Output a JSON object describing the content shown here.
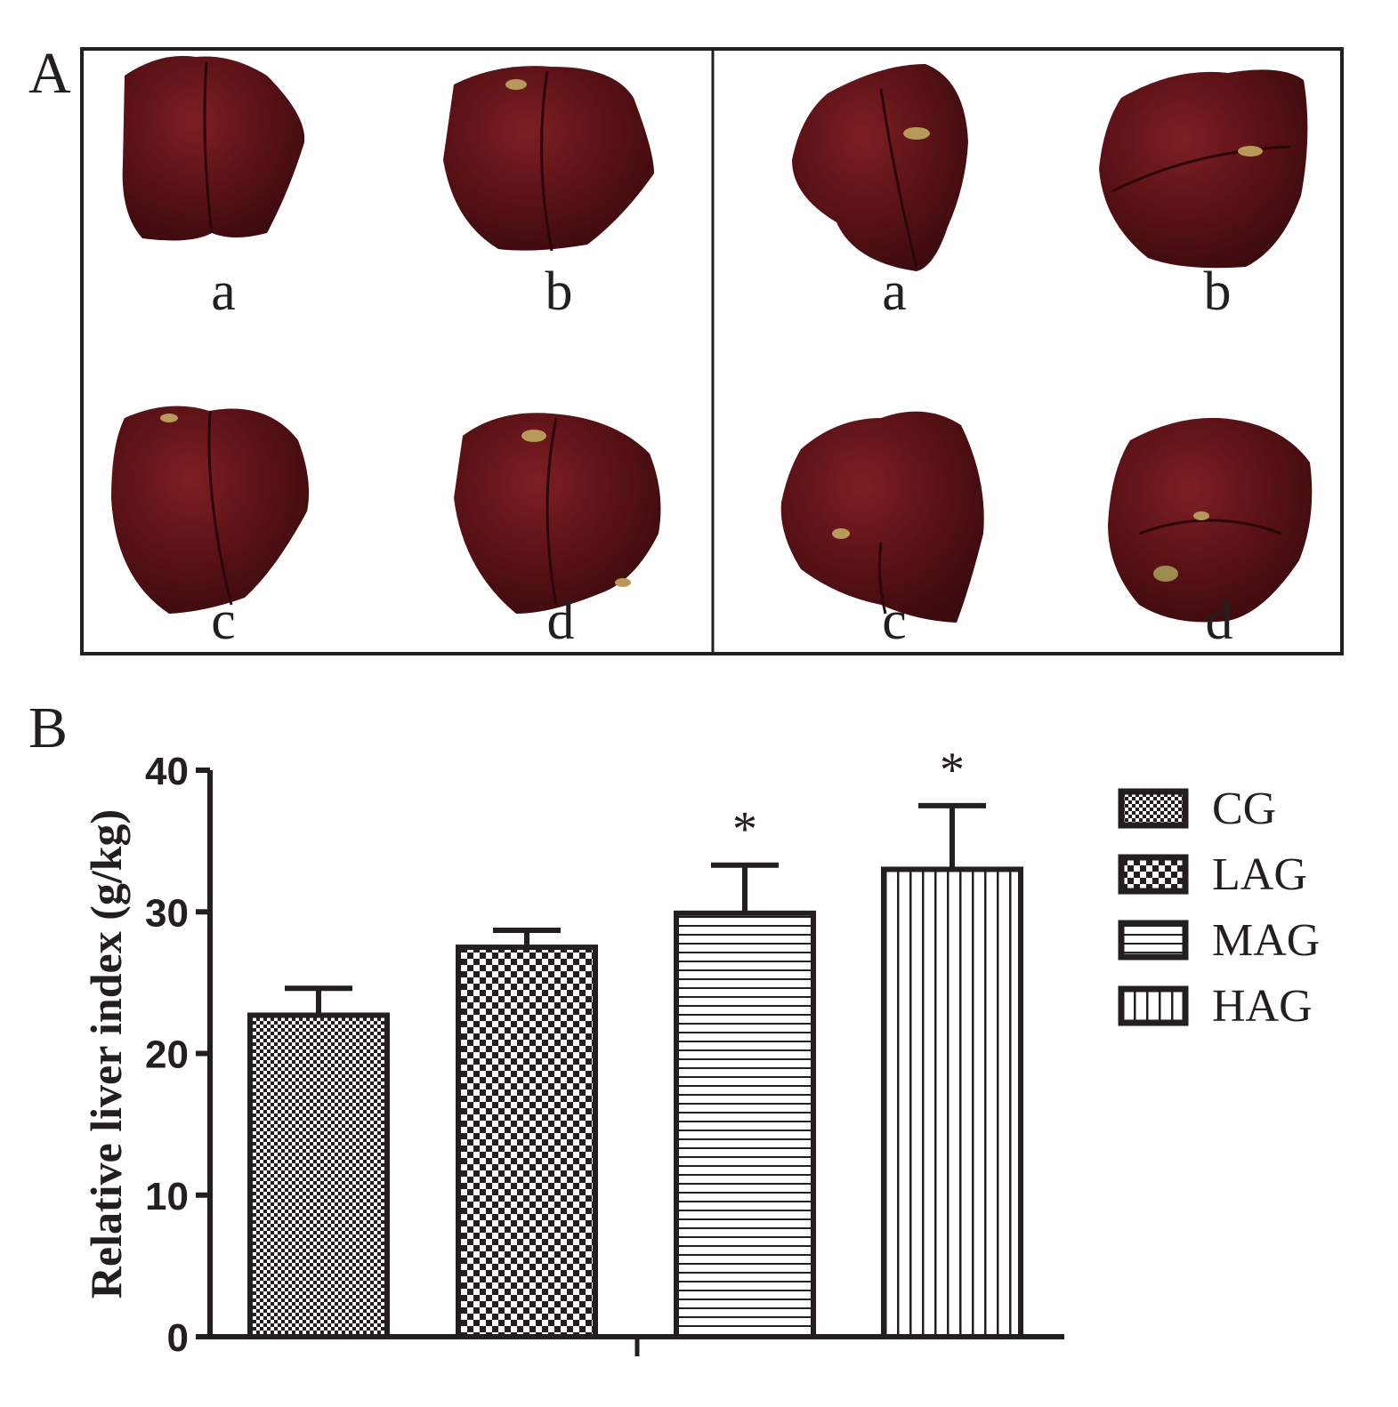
{
  "panel_a": {
    "label": "A",
    "groups": [
      {
        "items": [
          {
            "label": "a"
          },
          {
            "label": "b"
          },
          {
            "label": "c"
          },
          {
            "label": "d"
          }
        ]
      },
      {
        "items": [
          {
            "label": "a"
          },
          {
            "label": "b"
          },
          {
            "label": "c"
          },
          {
            "label": "d"
          }
        ]
      }
    ]
  },
  "panel_b": {
    "label": "B"
  },
  "chart_data": {
    "type": "bar",
    "title": "",
    "xlabel": "",
    "ylabel": "Relative liver index (g/kg)",
    "ylim": [
      0,
      40
    ],
    "yticks": [
      "0",
      "10",
      "20",
      "30",
      "40"
    ],
    "categories": [
      "CG",
      "LAG",
      "MAG",
      "HAG"
    ],
    "values": [
      22.7,
      27.5,
      29.9,
      33.0
    ],
    "errors": [
      1.9,
      1.2,
      3.4,
      4.5
    ],
    "significance": [
      "",
      "",
      "*",
      "*"
    ],
    "grid": false,
    "legend_position": "right",
    "legend": [
      {
        "name": "CG",
        "pattern": "fine-check"
      },
      {
        "name": "LAG",
        "pattern": "coarse-check"
      },
      {
        "name": "MAG",
        "pattern": "horizontal-lines"
      },
      {
        "name": "HAG",
        "pattern": "vertical-lines"
      }
    ],
    "colors": {
      "ink": "#231f20",
      "background": "#ffffff"
    }
  }
}
